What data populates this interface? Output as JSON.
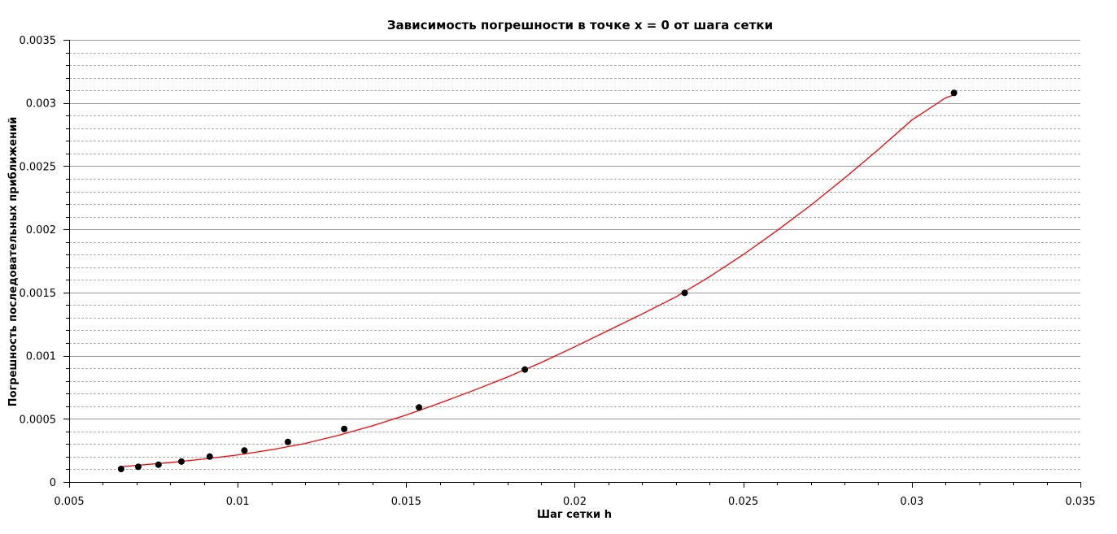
{
  "chart_data": {
    "type": "scatter",
    "title": "Зависимость погрешности в точке x = 0 от шага сетки",
    "xlabel": "Шаг сетки h",
    "ylabel": "Погрешность последовательных приближений",
    "xlim": [
      0.005,
      0.035
    ],
    "ylim": [
      0,
      0.0035
    ],
    "x_ticks": [
      "0.005",
      "0.01",
      "0.015",
      "0.02",
      "0.025",
      "0.03",
      "0.035"
    ],
    "y_ticks": [
      "0",
      "0.0005",
      "0.001",
      "0.0015",
      "0.002",
      "0.0025",
      "0.003",
      "0.0035"
    ],
    "grid": true,
    "colors": {
      "points": "#000000",
      "fit_line": "#ff0000",
      "major_grid": "#999999",
      "minor_grid": "#aaaaaa"
    },
    "series": [
      {
        "type": "scatter",
        "x": [
          0.00654,
          0.00705,
          0.00765,
          0.00833,
          0.00917,
          0.0102,
          0.01149,
          0.01316,
          0.01538,
          0.01852,
          0.02326,
          0.03125
        ],
        "y": [
          0.000103,
          0.00012,
          0.000137,
          0.000162,
          0.000201,
          0.000249,
          0.000317,
          0.00042,
          0.00059,
          0.00089,
          0.001497,
          0.00308
        ]
      },
      {
        "type": "line",
        "x": [
          0.0065,
          0.008,
          0.009,
          0.01,
          0.011,
          0.012,
          0.013,
          0.014,
          0.015,
          0.016,
          0.017,
          0.018,
          0.019,
          0.02,
          0.021,
          0.022,
          0.023,
          0.024,
          0.025,
          0.026,
          0.027,
          0.028,
          0.029,
          0.03,
          0.031,
          0.0313
        ],
        "y": [
          0.00012,
          0.000154,
          0.000182,
          0.000214,
          0.000255,
          0.000305,
          0.00037,
          0.000445,
          0.00053,
          0.000625,
          0.000725,
          0.00083,
          0.000945,
          0.00107,
          0.0012,
          0.00133,
          0.001465,
          0.001625,
          0.0018,
          0.00199,
          0.00219,
          0.002405,
          0.00263,
          0.002865,
          0.00304,
          0.00307
        ]
      }
    ]
  }
}
